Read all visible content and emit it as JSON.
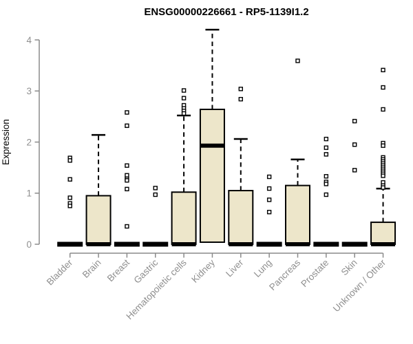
{
  "chart_data": {
    "type": "boxplot",
    "title": "ENSG00000226661 - RP5-1139I1.2",
    "ylabel": "Expression",
    "xlabel": "",
    "ylim": [
      0,
      4
    ],
    "yticks": [
      0,
      1,
      2,
      3,
      4
    ],
    "grid": false,
    "legend_position": "none",
    "categories": [
      "Bladder",
      "Brain",
      "Breast",
      "Gastric",
      "Hematopoietic cells",
      "Kidney",
      "Liver",
      "Lung",
      "Pancreas",
      "Prostate",
      "Skin",
      "Unknown / Other"
    ],
    "boxes": [
      {
        "name": "Bladder",
        "q1": 0,
        "median": 0,
        "q3": 0,
        "whisker_high": 0,
        "outliers": [
          1.69,
          1.64,
          1.27,
          0.91,
          0.8,
          0.75
        ]
      },
      {
        "name": "Brain",
        "q1": 0,
        "median": 0,
        "q3": 0.95,
        "whisker_high": 2.14,
        "outliers": []
      },
      {
        "name": "Breast",
        "q1": 0,
        "median": 0,
        "q3": 0,
        "whisker_high": 0,
        "outliers": [
          2.58,
          2.32,
          1.54,
          1.35,
          1.28,
          1.25,
          1.08,
          0.35
        ]
      },
      {
        "name": "Gastric",
        "q1": 0,
        "median": 0,
        "q3": 0,
        "whisker_high": 0,
        "outliers": [
          1.1,
          0.97
        ]
      },
      {
        "name": "Hematopoietic cells",
        "q1": 0,
        "median": 0,
        "q3": 1.02,
        "whisker_high": 2.52,
        "outliers": [
          3.01,
          2.86,
          2.72,
          2.66,
          2.61,
          2.56
        ]
      },
      {
        "name": "Kidney",
        "q1": 0.04,
        "median": 1.93,
        "q3": 2.64,
        "whisker_high": 4.2,
        "outliers": []
      },
      {
        "name": "Liver",
        "q1": 0,
        "median": 0,
        "q3": 1.05,
        "whisker_high": 2.06,
        "outliers": [
          3.04,
          2.84
        ]
      },
      {
        "name": "Lung",
        "q1": 0,
        "median": 0,
        "q3": 0,
        "whisker_high": 0,
        "outliers": [
          1.32,
          1.09,
          0.87,
          0.63
        ]
      },
      {
        "name": "Pancreas",
        "q1": 0,
        "median": 0,
        "q3": 1.15,
        "whisker_high": 1.66,
        "outliers": [
          3.59
        ]
      },
      {
        "name": "Prostate",
        "q1": 0,
        "median": 0,
        "q3": 0,
        "whisker_high": 0,
        "outliers": [
          2.06,
          1.89,
          1.76,
          1.33,
          1.22,
          1.18,
          0.97
        ]
      },
      {
        "name": "Skin",
        "q1": 0,
        "median": 0,
        "q3": 0,
        "whisker_high": 0,
        "outliers": [
          2.41,
          1.95,
          1.45
        ]
      },
      {
        "name": "Unknown / Other",
        "q1": 0,
        "median": 0,
        "q3": 0.43,
        "whisker_high": 1.09,
        "outliers": [
          3.41,
          3.07,
          2.64,
          1.98,
          1.93,
          1.7,
          1.66,
          1.62,
          1.58,
          1.54,
          1.5,
          1.46,
          1.42,
          1.38,
          1.34,
          1.21,
          1.15,
          1.11
        ]
      }
    ],
    "colors": {
      "box_fill": "#EDE6CA",
      "box_stroke": "#000000",
      "median": "#000000",
      "axis": "#8a8a8a",
      "tick_text": "#8f8f8f",
      "title": "#000000",
      "outlier_fill": "#ffffff",
      "background": "#ffffff"
    }
  }
}
